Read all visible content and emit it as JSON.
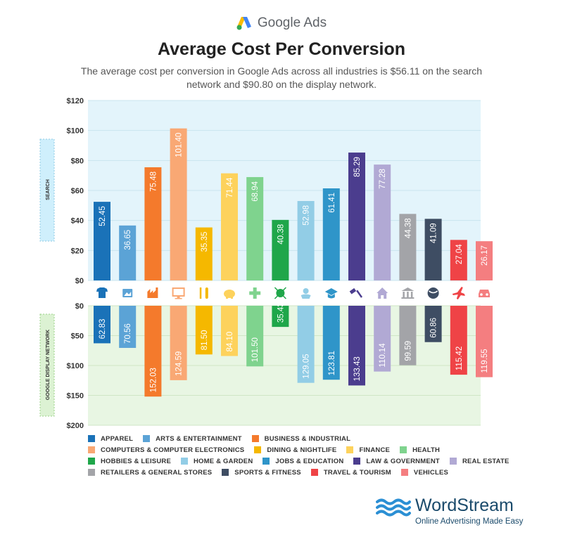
{
  "header": {
    "brand": "Google Ads",
    "brand_icon": "google-ads-logo",
    "title": "Average Cost Per Conversion",
    "subtitle": "The average cost per conversion in Google Ads across all industries is $56.11 on the search network and $90.80 on the display network."
  },
  "chart_data": [
    {
      "type": "bar",
      "section": "SEARCH",
      "ylabel": "SEARCH",
      "ylim": [
        0,
        120
      ],
      "yticks": [
        "$120",
        "$100",
        "$80",
        "$60",
        "$40",
        "$20",
        "$0"
      ],
      "categories": [
        "APPAREL",
        "ARTS & ENTERTAINMENT",
        "BUSINESS & INDUSTRIAL",
        "COMPUTERS & COMPUTER ELECTRONICS",
        "DINING & NIGHTLIFE",
        "FINANCE",
        "HEALTH",
        "HOBBIES & LEISURE",
        "HOME & GARDEN",
        "JOBS & EDUCATION",
        "LAW & GOVERNMENT",
        "REAL ESTATE",
        "RETAILERS & GENERAL STORES",
        "SPORTS & FITNESS",
        "TRAVEL & TOURISM",
        "VEHICLES"
      ],
      "values": [
        52.45,
        36.65,
        75.48,
        101.4,
        35.35,
        71.44,
        68.94,
        40.38,
        52.98,
        61.41,
        85.29,
        77.28,
        44.38,
        41.09,
        27.04,
        26.17
      ]
    },
    {
      "type": "bar",
      "section": "GOOGLE DISPLAY NETWORK",
      "ylabel": "GOOGLE DISPLAY NETWORK",
      "ylim": [
        0,
        200
      ],
      "yticks": [
        "$0",
        "$50",
        "$100",
        "$150",
        "$200"
      ],
      "categories": [
        "APPAREL",
        "ARTS & ENTERTAINMENT",
        "BUSINESS & INDUSTRIAL",
        "COMPUTERS & COMPUTER ELECTRONICS",
        "DINING & NIGHTLIFE",
        "FINANCE",
        "HEALTH",
        "HOBBIES & LEISURE",
        "HOME & GARDEN",
        "JOBS & EDUCATION",
        "LAW & GOVERNMENT",
        "REAL ESTATE",
        "RETAILERS & GENERAL STORES",
        "SPORTS & FITNESS",
        "TRAVEL & TOURISM",
        "VEHICLES"
      ],
      "values": [
        62.83,
        70.56,
        152.03,
        124.59,
        81.5,
        84.1,
        101.5,
        35.43,
        129.05,
        123.81,
        133.43,
        110.14,
        99.59,
        60.86,
        115.42,
        119.55
      ]
    }
  ],
  "industries": [
    {
      "name": "APPAREL",
      "color": "#1a72b8",
      "icon": "shirt-icon"
    },
    {
      "name": "ARTS & ENTERTAINMENT",
      "color": "#5ba3d6",
      "icon": "picture-icon"
    },
    {
      "name": "BUSINESS & INDUSTRIAL",
      "color": "#f47a2c",
      "icon": "factory-icon"
    },
    {
      "name": "COMPUTERS & COMPUTER ELECTRONICS",
      "color": "#f9a874",
      "icon": "monitor-icon"
    },
    {
      "name": "DINING & NIGHTLIFE",
      "color": "#f5b800",
      "icon": "fork-knife-icon"
    },
    {
      "name": "FINANCE",
      "color": "#fdd25c",
      "icon": "piggy-bank-icon"
    },
    {
      "name": "HEALTH",
      "color": "#7fd38e",
      "icon": "plus-icon"
    },
    {
      "name": "HOBBIES & LEISURE",
      "color": "#1fa64a",
      "icon": "ball-icon"
    },
    {
      "name": "HOME & GARDEN",
      "color": "#92cde6",
      "icon": "flower-icon"
    },
    {
      "name": "JOBS & EDUCATION",
      "color": "#2f95c9",
      "icon": "graduation-cap-icon"
    },
    {
      "name": "LAW & GOVERNMENT",
      "color": "#4b3d8e",
      "icon": "gavel-icon"
    },
    {
      "name": "REAL ESTATE",
      "color": "#b1a9d4",
      "icon": "house-icon"
    },
    {
      "name": "RETAILERS & GENERAL STORES",
      "color": "#a3a4a8",
      "icon": "store-icon"
    },
    {
      "name": "SPORTS & FITNESS",
      "color": "#3e4d63",
      "icon": "sports-ball-icon"
    },
    {
      "name": "TRAVEL & TOURISM",
      "color": "#ef4346",
      "icon": "airplane-icon"
    },
    {
      "name": "VEHICLES",
      "color": "#f47e80",
      "icon": "car-icon"
    }
  ],
  "background": {
    "search_band": "#e3f4fb",
    "display_band": "#e8f6e3"
  },
  "footer": {
    "logo_name": "WordStream",
    "tagline": "Online Advertising Made Easy",
    "logo_color": "#1a4a6b",
    "wave_color": "#2b8fd4"
  }
}
